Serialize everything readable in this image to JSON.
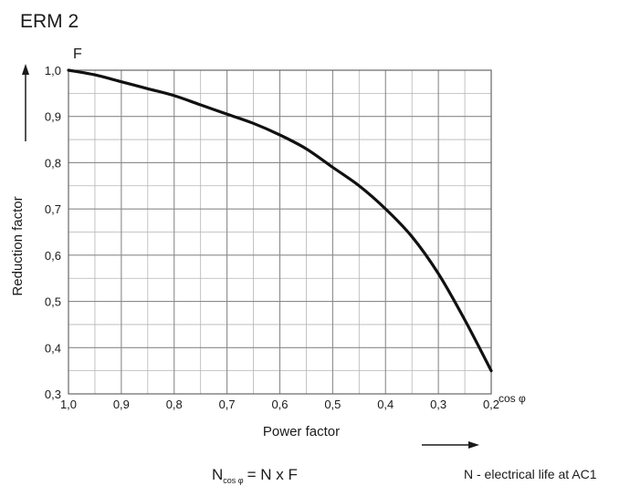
{
  "chart_data": {
    "type": "line",
    "title": "ERM 2",
    "y_symbol": "F",
    "xlabel": "Power factor",
    "ylabel": "Reduction factor",
    "x_unit_label": "cos φ",
    "xlim": [
      1.0,
      0.2
    ],
    "ylim": [
      0.3,
      1.0
    ],
    "x_ticks": [
      1.0,
      0.9,
      0.8,
      0.7,
      0.6,
      0.5,
      0.4,
      0.3,
      0.2
    ],
    "x_tick_labels": [
      "1,0",
      "0,9",
      "0,8",
      "0,7",
      "0,6",
      "0,5",
      "0,4",
      "0,3",
      "0,2"
    ],
    "y_ticks": [
      0.3,
      0.4,
      0.5,
      0.6,
      0.7,
      0.8,
      0.9,
      1.0
    ],
    "y_tick_labels": [
      "0,3",
      "0,4",
      "0,5",
      "0,6",
      "0,7",
      "0,8",
      "0,9",
      "1,0"
    ],
    "grid": true,
    "series": [
      {
        "x": [
          1.0,
          0.95,
          0.9,
          0.85,
          0.8,
          0.75,
          0.7,
          0.65,
          0.6,
          0.55,
          0.5,
          0.45,
          0.4,
          0.35,
          0.3,
          0.25,
          0.2
        ],
        "y": [
          1.0,
          0.99,
          0.975,
          0.96,
          0.945,
          0.925,
          0.905,
          0.885,
          0.86,
          0.83,
          0.79,
          0.75,
          0.7,
          0.64,
          0.56,
          0.46,
          0.35
        ]
      }
    ]
  },
  "formula": {
    "lhs": "N",
    "subscript": "cos φ",
    "rhs": "= N x F"
  },
  "note": "N - electrical life at AC1"
}
